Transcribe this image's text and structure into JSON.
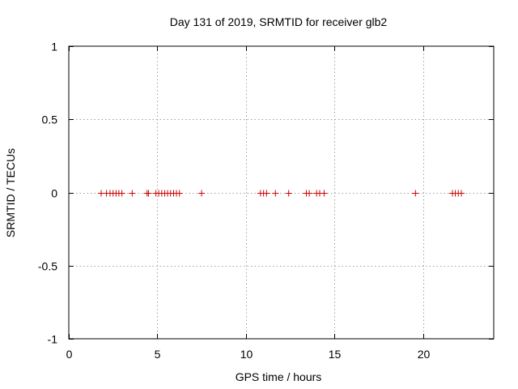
{
  "chart_data": {
    "type": "scatter",
    "title": "Day 131 of 2019, SRMTID for receiver glb2",
    "xlabel": "GPS time / hours",
    "ylabel": "SRMTID / TECUs",
    "xlim": [
      0,
      24
    ],
    "ylim": [
      -1,
      1
    ],
    "xticks": [
      0,
      5,
      10,
      15,
      20
    ],
    "xtick_labels": [
      "0",
      "5",
      "10",
      "15",
      "20"
    ],
    "yticks": [
      -1,
      -0.5,
      0,
      0.5,
      1
    ],
    "ytick_labels": [
      "-1",
      "-0.5",
      "0",
      "0.5",
      "1"
    ],
    "grid": true,
    "marker": "+",
    "color": "#cc0000",
    "series": [
      {
        "name": "SRMTID",
        "x": [
          1.83,
          2.13,
          2.33,
          2.5,
          2.67,
          2.83,
          3.0,
          3.58,
          4.42,
          4.5,
          4.92,
          5.08,
          5.25,
          5.42,
          5.58,
          5.75,
          5.92,
          6.08,
          6.25,
          7.5,
          10.83,
          11.0,
          11.17,
          11.67,
          12.42,
          13.42,
          13.58,
          14.0,
          14.17,
          14.42,
          19.58,
          21.67,
          21.83,
          22.0,
          22.17
        ],
        "y": [
          0,
          0,
          0,
          0,
          0,
          0,
          0,
          0,
          0,
          0,
          0,
          0,
          0,
          0,
          0,
          0,
          0,
          0,
          0,
          0,
          0,
          0,
          0,
          0,
          0,
          0,
          0,
          0,
          0,
          0,
          0,
          0,
          0,
          0,
          0
        ]
      }
    ]
  }
}
